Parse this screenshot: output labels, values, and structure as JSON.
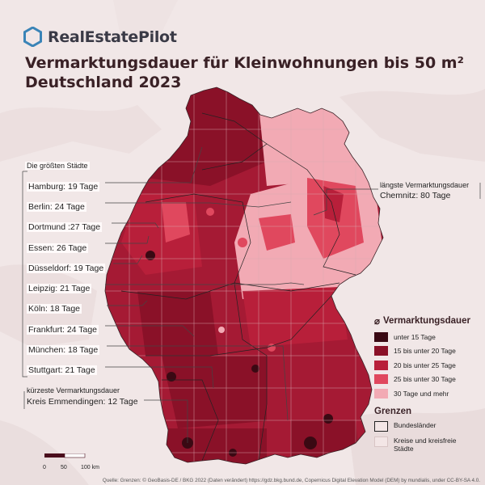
{
  "brand": {
    "name": "RealEstatePilot",
    "accent": "#3a84b7"
  },
  "title": {
    "line1": "Vermarktungsdauer für Kleinwohnungen bis 50 m²",
    "line2": "Deutschland 2023"
  },
  "cities": {
    "header": "Die größten Städte",
    "items": [
      "Hamburg: 19 Tage",
      "Berlin: 24 Tage",
      "Dortmund :27 Tage",
      "Essen: 26 Tage",
      "Düsseldorf: 19 Tage",
      "Leipzig: 21 Tage",
      "Köln: 18 Tage",
      "Frankfurt: 24 Tage",
      "München: 18 Tage",
      "Stuttgart: 21 Tage"
    ]
  },
  "shortest": {
    "header": "kürzeste Vermarktungsdauer",
    "value": "Kreis Emmendingen: 12 Tage"
  },
  "longest": {
    "header": "längste Vermarktungsdauer",
    "value": "Chemnitz: 80 Tage"
  },
  "legend": {
    "symbol": "⌀",
    "title": "Vermarktungsdauer",
    "items": [
      {
        "label": "unter 15 Tage",
        "color": "#3a0913"
      },
      {
        "label": "15 bis unter 20 Tage",
        "color": "#8a1128"
      },
      {
        "label": "20 bis unter 25 Tage",
        "color": "#b81f3a"
      },
      {
        "label": "25 bis unter 30 Tage",
        "color": "#e0485e"
      },
      {
        "label": "30 Tage und mehr",
        "color": "#f2aab4"
      }
    ],
    "borders_title": "Grenzen",
    "borders": [
      {
        "label": "Bundesländer",
        "line": "#222222"
      },
      {
        "label": "Kreise und kreisfreie Städte",
        "line": "#d8c4c4"
      }
    ]
  },
  "scale": {
    "labels": [
      "0",
      "50",
      "100 km"
    ]
  },
  "credit": "Quelle: Grenzen: © GeoBasis-DE / BKG 2022 (Daten verändert) https://gdz.bkg.bund.de, Copernicus Digital Elevation Model (DEM) by mundialis, under CC-BY-SA 4.0."
}
